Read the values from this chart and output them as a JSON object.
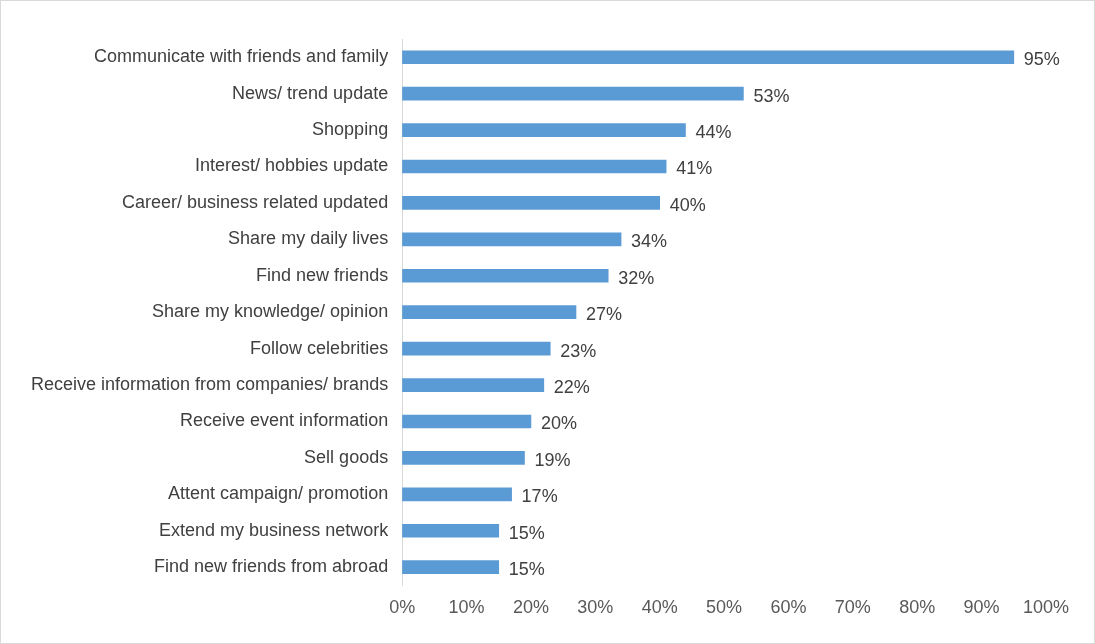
{
  "chart_data": {
    "type": "bar",
    "orientation": "horizontal",
    "categories": [
      "Communicate with friends and family",
      "News/ trend update",
      "Shopping",
      "Interest/ hobbies update",
      "Career/ business related updated",
      "Share my daily lives",
      "Find new friends",
      "Share my knowledge/ opinion",
      "Follow celebrities",
      "Receive information from companies/ brands",
      "Receive event information",
      "Sell goods",
      "Attent campaign/ promotion",
      "Extend my business network",
      "Find new friends from abroad"
    ],
    "values": [
      95,
      53,
      44,
      41,
      40,
      34,
      32,
      27,
      23,
      22,
      20,
      19,
      17,
      15,
      15
    ],
    "value_labels": [
      "95%",
      "53%",
      "44%",
      "41%",
      "40%",
      "34%",
      "32%",
      "27%",
      "23%",
      "22%",
      "20%",
      "19%",
      "17%",
      "15%",
      "15%"
    ],
    "color": "#5b9bd5",
    "xlim": [
      0,
      100
    ],
    "xticks": [
      {
        "value": 0,
        "label": "0%"
      },
      {
        "value": 10,
        "label": "10%"
      },
      {
        "value": 20,
        "label": "20%"
      },
      {
        "value": 30,
        "label": "30%"
      },
      {
        "value": 40,
        "label": "40%"
      },
      {
        "value": 50,
        "label": "50%"
      },
      {
        "value": 60,
        "label": "60%"
      },
      {
        "value": 70,
        "label": "70%"
      },
      {
        "value": 80,
        "label": "80%"
      },
      {
        "value": 90,
        "label": "90%"
      },
      {
        "value": 100,
        "label": "100%"
      }
    ],
    "grid": false,
    "legend": false
  }
}
